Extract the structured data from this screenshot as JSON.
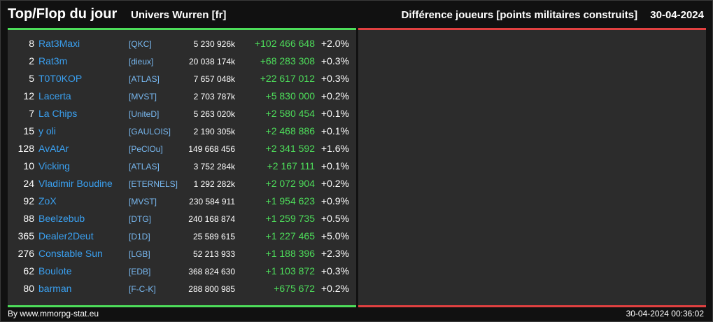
{
  "header": {
    "title": "Top/Flop du jour",
    "universe": "Univers Wurren [fr]",
    "metric": "Différence joueurs [points militaires construits]",
    "date": "30-04-2024"
  },
  "colors": {
    "gain": "#4ddd5a",
    "loss": "#e04040",
    "player": "#3aa0f0",
    "alliance": "#78b8f0"
  },
  "top": [
    {
      "rank": "8",
      "name": "Rat3Maxi",
      "alliance": "[QKC]",
      "points": "5 230 926k",
      "diff": "+102 466 648",
      "pct": "+2.0%"
    },
    {
      "rank": "2",
      "name": "Rat3m",
      "alliance": "[dieux]",
      "points": "20 038 174k",
      "diff": "+68 283 308",
      "pct": "+0.3%"
    },
    {
      "rank": "5",
      "name": "T0T0KOP",
      "alliance": "[ATLAS]",
      "points": "7 657 048k",
      "diff": "+22 617 012",
      "pct": "+0.3%"
    },
    {
      "rank": "12",
      "name": "Lacerta",
      "alliance": "[MVST]",
      "points": "2 703 787k",
      "diff": "+5 830 000",
      "pct": "+0.2%"
    },
    {
      "rank": "7",
      "name": "La Chips",
      "alliance": "[UniteD]",
      "points": "5 263 020k",
      "diff": "+2 580 454",
      "pct": "+0.1%"
    },
    {
      "rank": "15",
      "name": "y oli",
      "alliance": "[GAULOIS]",
      "points": "2 190 305k",
      "diff": "+2 468 886",
      "pct": "+0.1%"
    },
    {
      "rank": "128",
      "name": "AvAtAr",
      "alliance": "[PeClOu]",
      "points": "149 668 456",
      "diff": "+2 341 592",
      "pct": "+1.6%"
    },
    {
      "rank": "10",
      "name": "Vicking",
      "alliance": "[ATLAS]",
      "points": "3 752 284k",
      "diff": "+2 167 111",
      "pct": "+0.1%"
    },
    {
      "rank": "24",
      "name": "Vladimir Boudine",
      "alliance": "[ETERNELS]",
      "points": "1 292 282k",
      "diff": "+2 072 904",
      "pct": "+0.2%"
    },
    {
      "rank": "92",
      "name": "ZoX",
      "alliance": "[MVST]",
      "points": "230 584 911",
      "diff": "+1 954 623",
      "pct": "+0.9%"
    },
    {
      "rank": "88",
      "name": "Beelzebub",
      "alliance": "[DTG]",
      "points": "240 168 874",
      "diff": "+1 259 735",
      "pct": "+0.5%"
    },
    {
      "rank": "365",
      "name": "Dealer2Deut",
      "alliance": "[D1D]",
      "points": "25 589 615",
      "diff": "+1 227 465",
      "pct": "+5.0%"
    },
    {
      "rank": "276",
      "name": "Constable Sun",
      "alliance": "[LGB]",
      "points": "52 213 933",
      "diff": "+1 188 396",
      "pct": "+2.3%"
    },
    {
      "rank": "62",
      "name": "Boulote",
      "alliance": "[EDB]",
      "points": "368 824 630",
      "diff": "+1 103 872",
      "pct": "+0.3%"
    },
    {
      "rank": "80",
      "name": "barman",
      "alliance": "[F-C-K]",
      "points": "288 800 985",
      "diff": "+675 672",
      "pct": "+0.2%"
    }
  ],
  "flop": [],
  "footer": {
    "credit": "By www.mmorpg-stat.eu",
    "timestamp": "30-04-2024 00:36:02"
  }
}
